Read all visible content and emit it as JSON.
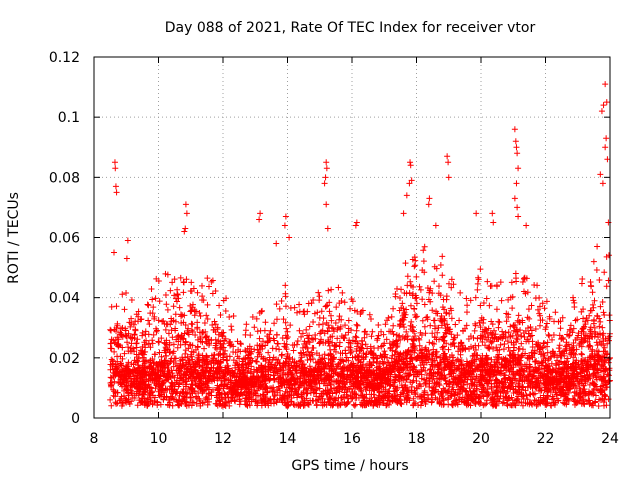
{
  "chart_data": {
    "type": "scatter",
    "title": "Day 088 of 2021, Rate Of TEC Index for receiver vtor",
    "xlabel": "GPS time / hours",
    "ylabel": "ROTI / TECUs",
    "xlim": [
      8,
      24
    ],
    "ylim": [
      0,
      0.12
    ],
    "xticks": [
      8,
      10,
      12,
      14,
      16,
      18,
      20,
      22,
      24
    ],
    "yticks": [
      0,
      0.02,
      0.04,
      0.06,
      0.08,
      0.1,
      0.12
    ],
    "xtick_labels": [
      "8",
      "10",
      "12",
      "14",
      "16",
      "18",
      "20",
      "22",
      "24"
    ],
    "ytick_labels": [
      "0",
      "0.02",
      "0.04",
      "0.06",
      "0.08",
      "0.1",
      "0.12"
    ],
    "grid": true,
    "marker": "+",
    "color": "#ff0000",
    "data_start": 8.5,
    "data_end": 24.0,
    "points": [
      {
        "x": 8.65,
        "y": 0.085
      },
      {
        "x": 8.66,
        "y": 0.083
      },
      {
        "x": 8.68,
        "y": 0.077
      },
      {
        "x": 8.7,
        "y": 0.075
      },
      {
        "x": 8.62,
        "y": 0.055
      },
      {
        "x": 9.05,
        "y": 0.059
      },
      {
        "x": 9.02,
        "y": 0.053
      },
      {
        "x": 10.85,
        "y": 0.071
      },
      {
        "x": 10.88,
        "y": 0.068
      },
      {
        "x": 10.83,
        "y": 0.063
      },
      {
        "x": 10.8,
        "y": 0.062
      },
      {
        "x": 13.15,
        "y": 0.068
      },
      {
        "x": 13.12,
        "y": 0.066
      },
      {
        "x": 13.65,
        "y": 0.058
      },
      {
        "x": 13.95,
        "y": 0.067
      },
      {
        "x": 13.92,
        "y": 0.064
      },
      {
        "x": 14.05,
        "y": 0.06
      },
      {
        "x": 15.2,
        "y": 0.085
      },
      {
        "x": 15.22,
        "y": 0.083
      },
      {
        "x": 15.18,
        "y": 0.08
      },
      {
        "x": 15.15,
        "y": 0.078
      },
      {
        "x": 15.2,
        "y": 0.071
      },
      {
        "x": 15.25,
        "y": 0.063
      },
      {
        "x": 16.15,
        "y": 0.065
      },
      {
        "x": 16.12,
        "y": 0.064
      },
      {
        "x": 17.8,
        "y": 0.085
      },
      {
        "x": 17.82,
        "y": 0.084
      },
      {
        "x": 17.85,
        "y": 0.079
      },
      {
        "x": 17.78,
        "y": 0.078
      },
      {
        "x": 17.7,
        "y": 0.074
      },
      {
        "x": 17.6,
        "y": 0.068
      },
      {
        "x": 18.4,
        "y": 0.073
      },
      {
        "x": 18.38,
        "y": 0.071
      },
      {
        "x": 18.6,
        "y": 0.064
      },
      {
        "x": 18.95,
        "y": 0.087
      },
      {
        "x": 18.98,
        "y": 0.085
      },
      {
        "x": 19.0,
        "y": 0.08
      },
      {
        "x": 19.85,
        "y": 0.068
      },
      {
        "x": 20.35,
        "y": 0.068
      },
      {
        "x": 20.38,
        "y": 0.065
      },
      {
        "x": 21.05,
        "y": 0.096
      },
      {
        "x": 21.08,
        "y": 0.092
      },
      {
        "x": 21.1,
        "y": 0.09
      },
      {
        "x": 21.12,
        "y": 0.088
      },
      {
        "x": 21.15,
        "y": 0.083
      },
      {
        "x": 21.1,
        "y": 0.078
      },
      {
        "x": 21.05,
        "y": 0.073
      },
      {
        "x": 21.12,
        "y": 0.07
      },
      {
        "x": 21.15,
        "y": 0.067
      },
      {
        "x": 21.4,
        "y": 0.064
      },
      {
        "x": 23.85,
        "y": 0.111
      },
      {
        "x": 23.8,
        "y": 0.104
      },
      {
        "x": 23.9,
        "y": 0.105
      },
      {
        "x": 23.75,
        "y": 0.102
      },
      {
        "x": 23.88,
        "y": 0.093
      },
      {
        "x": 23.85,
        "y": 0.09
      },
      {
        "x": 23.92,
        "y": 0.086
      },
      {
        "x": 23.7,
        "y": 0.081
      },
      {
        "x": 23.78,
        "y": 0.078
      },
      {
        "x": 23.95,
        "y": 0.065
      },
      {
        "x": 23.6,
        "y": 0.057
      },
      {
        "x": 23.5,
        "y": 0.052
      }
    ],
    "bulk_distribution": [
      {
        "hour": 8.5,
        "median": 0.013,
        "p90": 0.025,
        "max": 0.04
      },
      {
        "hour": 9.0,
        "median": 0.014,
        "p90": 0.03,
        "max": 0.047
      },
      {
        "hour": 9.5,
        "median": 0.012,
        "p90": 0.022,
        "max": 0.033
      },
      {
        "hour": 10.0,
        "median": 0.014,
        "p90": 0.03,
        "max": 0.051
      },
      {
        "hour": 10.5,
        "median": 0.015,
        "p90": 0.032,
        "max": 0.047
      },
      {
        "hour": 11.0,
        "median": 0.014,
        "p90": 0.03,
        "max": 0.046
      },
      {
        "hour": 11.5,
        "median": 0.016,
        "p90": 0.033,
        "max": 0.05
      },
      {
        "hour": 12.0,
        "median": 0.013,
        "p90": 0.028,
        "max": 0.042
      },
      {
        "hour": 12.5,
        "median": 0.011,
        "p90": 0.02,
        "max": 0.032
      },
      {
        "hour": 13.0,
        "median": 0.012,
        "p90": 0.022,
        "max": 0.035
      },
      {
        "hour": 13.5,
        "median": 0.013,
        "p90": 0.026,
        "max": 0.04
      },
      {
        "hour": 14.0,
        "median": 0.014,
        "p90": 0.028,
        "max": 0.045
      },
      {
        "hour": 14.5,
        "median": 0.013,
        "p90": 0.024,
        "max": 0.036
      },
      {
        "hour": 15.0,
        "median": 0.014,
        "p90": 0.028,
        "max": 0.043
      },
      {
        "hour": 15.5,
        "median": 0.015,
        "p90": 0.03,
        "max": 0.046
      },
      {
        "hour": 16.0,
        "median": 0.014,
        "p90": 0.026,
        "max": 0.042
      },
      {
        "hour": 16.5,
        "median": 0.012,
        "p90": 0.022,
        "max": 0.035
      },
      {
        "hour": 17.0,
        "median": 0.012,
        "p90": 0.02,
        "max": 0.03
      },
      {
        "hour": 17.5,
        "median": 0.016,
        "p90": 0.035,
        "max": 0.05
      },
      {
        "hour": 18.0,
        "median": 0.018,
        "p90": 0.04,
        "max": 0.058
      },
      {
        "hour": 18.5,
        "median": 0.017,
        "p90": 0.038,
        "max": 0.06
      },
      {
        "hour": 19.0,
        "median": 0.015,
        "p90": 0.03,
        "max": 0.05
      },
      {
        "hour": 19.5,
        "median": 0.013,
        "p90": 0.024,
        "max": 0.04
      },
      {
        "hour": 20.0,
        "median": 0.015,
        "p90": 0.032,
        "max": 0.05
      },
      {
        "hour": 20.5,
        "median": 0.014,
        "p90": 0.028,
        "max": 0.045
      },
      {
        "hour": 21.0,
        "median": 0.016,
        "p90": 0.033,
        "max": 0.05
      },
      {
        "hour": 21.5,
        "median": 0.015,
        "p90": 0.03,
        "max": 0.048
      },
      {
        "hour": 22.0,
        "median": 0.013,
        "p90": 0.024,
        "max": 0.04
      },
      {
        "hour": 22.5,
        "median": 0.012,
        "p90": 0.021,
        "max": 0.033
      },
      {
        "hour": 23.0,
        "median": 0.014,
        "p90": 0.028,
        "max": 0.045
      },
      {
        "hour": 23.5,
        "median": 0.016,
        "p90": 0.033,
        "max": 0.05
      },
      {
        "hour": 24.0,
        "median": 0.015,
        "p90": 0.035,
        "max": 0.055
      }
    ]
  }
}
